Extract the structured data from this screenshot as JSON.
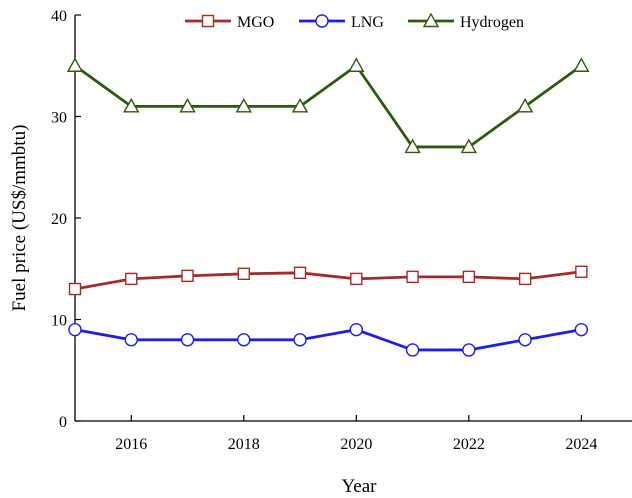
{
  "chart_data": {
    "type": "line",
    "title": "",
    "xlabel": "Year",
    "ylabel": "Fuel price (US$/mmbtu)",
    "x": [
      2015,
      2016,
      2017,
      2018,
      2019,
      2020,
      2021,
      2022,
      2023,
      2024
    ],
    "xlim": [
      2015,
      2024.9
    ],
    "ylim": [
      0,
      40
    ],
    "xticks": [
      2016,
      2018,
      2020,
      2022,
      2024
    ],
    "yticks": [
      0,
      10,
      20,
      30,
      40
    ],
    "grid": false,
    "legend_position": "top",
    "series": [
      {
        "name": "MGO",
        "color": "#a52a2a",
        "marker": "square",
        "values": [
          13.0,
          14.0,
          14.3,
          14.5,
          14.6,
          14.0,
          14.2,
          14.2,
          14.0,
          14.7
        ]
      },
      {
        "name": "LNG",
        "color": "#1f1fe6",
        "marker": "circle",
        "values": [
          9.0,
          8.0,
          8.0,
          8.0,
          8.0,
          9.0,
          7.0,
          7.0,
          8.0,
          9.0
        ]
      },
      {
        "name": "Hydrogen",
        "color": "#2e5a10",
        "marker": "triangle",
        "values": [
          35.0,
          31.0,
          31.0,
          31.0,
          31.0,
          35.0,
          27.0,
          27.0,
          31.0,
          35.0
        ]
      }
    ]
  }
}
